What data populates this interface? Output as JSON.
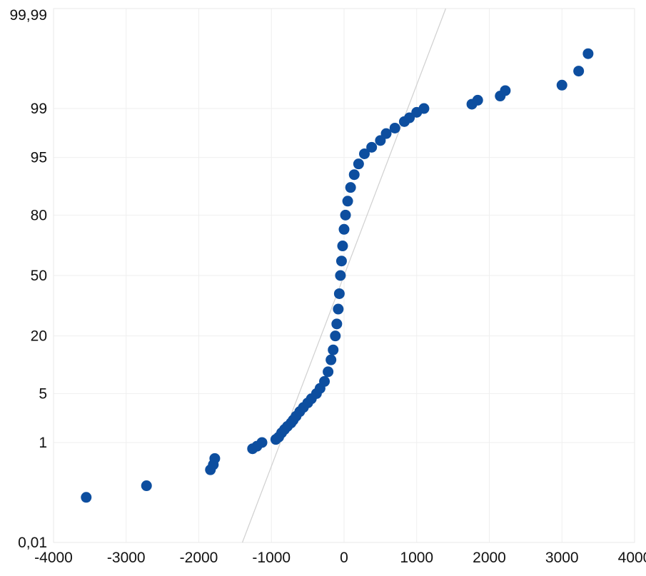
{
  "chart_data": {
    "type": "scatter",
    "title": "",
    "xlabel": "",
    "ylabel": "",
    "scale_y": "normal-probability",
    "xlim": [
      -4000,
      4000
    ],
    "ylim": [
      0.01,
      99.99
    ],
    "grid": true,
    "x_ticks": [
      -4000,
      -3000,
      -2000,
      -1000,
      0,
      1000,
      2000,
      3000,
      4000
    ],
    "x_tick_labels": [
      "-4000",
      "-3000",
      "-2000",
      "-1000",
      "0",
      "1000",
      "2000",
      "3000",
      "4000"
    ],
    "y_ticks": [
      0.01,
      1,
      5,
      20,
      50,
      80,
      95,
      99,
      99.99
    ],
    "y_tick_labels": [
      "0,01",
      "1",
      "5",
      "20",
      "50",
      "80",
      "95",
      "99",
      "99,99"
    ],
    "reference_line": {
      "from": [
        -1400,
        0.01
      ],
      "to": [
        1400,
        99.99
      ]
    },
    "series": [
      {
        "marker_color": "#0d4e9f",
        "points": [
          [
            -3550,
            0.1
          ],
          [
            -2720,
            0.17
          ],
          [
            -1840,
            0.34
          ],
          [
            -1800,
            0.42
          ],
          [
            -1780,
            0.54
          ],
          [
            -1260,
            0.79
          ],
          [
            -1200,
            0.87
          ],
          [
            -1130,
            1.0
          ],
          [
            -940,
            1.12
          ],
          [
            -900,
            1.22
          ],
          [
            -860,
            1.42
          ],
          [
            -820,
            1.6
          ],
          [
            -780,
            1.78
          ],
          [
            -730,
            2.0
          ],
          [
            -700,
            2.2
          ],
          [
            -660,
            2.5
          ],
          [
            -610,
            2.9
          ],
          [
            -560,
            3.3
          ],
          [
            -500,
            3.8
          ],
          [
            -450,
            4.3
          ],
          [
            -380,
            5.0
          ],
          [
            -330,
            5.8
          ],
          [
            -270,
            7.0
          ],
          [
            -220,
            9.0
          ],
          [
            -180,
            12.0
          ],
          [
            -150,
            15.0
          ],
          [
            -120,
            20.0
          ],
          [
            -100,
            25.0
          ],
          [
            -80,
            32.0
          ],
          [
            -65,
            40.0
          ],
          [
            -50,
            50.0
          ],
          [
            -35,
            58.0
          ],
          [
            -20,
            66.0
          ],
          [
            0,
            74.0
          ],
          [
            20,
            80.0
          ],
          [
            50,
            85.0
          ],
          [
            90,
            89.0
          ],
          [
            140,
            92.0
          ],
          [
            200,
            94.0
          ],
          [
            280,
            95.5
          ],
          [
            380,
            96.3
          ],
          [
            500,
            97.0
          ],
          [
            580,
            97.6
          ],
          [
            700,
            98.0
          ],
          [
            830,
            98.4
          ],
          [
            900,
            98.6
          ],
          [
            1000,
            98.85
          ],
          [
            1100,
            99.0
          ],
          [
            1760,
            99.15
          ],
          [
            1840,
            99.27
          ],
          [
            2150,
            99.38
          ],
          [
            2220,
            99.5
          ],
          [
            3000,
            99.6
          ],
          [
            3230,
            99.78
          ],
          [
            3360,
            99.9
          ]
        ]
      }
    ]
  }
}
